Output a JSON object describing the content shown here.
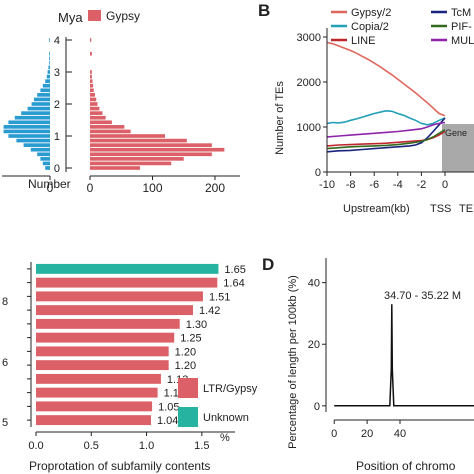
{
  "panel_letters": {
    "b": "B",
    "d": "D"
  },
  "chart_data": [
    {
      "id": "A",
      "type": "bar",
      "orientation": "horizontal",
      "title": "",
      "time_label": "Mya",
      "xlabel": "Number",
      "y_ticks": [
        0,
        1,
        2,
        3,
        4
      ],
      "left_xlim": [
        60,
        0
      ],
      "left_x_ticks": [
        0
      ],
      "right_xlim": [
        0,
        240
      ],
      "right_x_ticks": [
        0,
        100,
        200
      ],
      "legend": {
        "entries": [
          "Gypsy"
        ],
        "position": "top-right"
      },
      "colors": {
        "left": "#2a9bd0",
        "right": "#dc6068"
      },
      "left_values": [
        6,
        9,
        12,
        16,
        24,
        33,
        42,
        52,
        58,
        58,
        52,
        44,
        36,
        28,
        23,
        20,
        16,
        12,
        9,
        6,
        4,
        3,
        2,
        1,
        1,
        1,
        0,
        0,
        1
      ],
      "right_series": {
        "name": "Gypsy",
        "values": [
          80,
          130,
          150,
          195,
          215,
          195,
          155,
          120,
          65,
          55,
          35,
          25,
          20,
          15,
          12,
          10,
          8,
          6,
          5,
          4,
          3,
          3,
          0,
          0,
          0,
          3,
          0,
          0,
          2
        ]
      }
    },
    {
      "id": "B",
      "type": "line",
      "title": "",
      "ylabel": "Number of TEs",
      "xlabel": "Upstream(kb)",
      "x_ticks": [
        "-10",
        "-8",
        "-6",
        "-4",
        "-2",
        "0"
      ],
      "extra_x_labels": [
        "TSS",
        "TE"
      ],
      "ylim": [
        0,
        3200
      ],
      "y_ticks": [
        0,
        1000,
        2000,
        3000
      ],
      "gene_label": "Gene",
      "legend": {
        "position": "top",
        "entries": [
          "Gypsy/2",
          "TcM",
          "Copia/2",
          "PIF-",
          "LINE",
          "MUL"
        ]
      },
      "series": [
        {
          "name": "Gypsy/2",
          "color": "#e0675e",
          "x": [
            -10,
            -9.5,
            -9,
            -8.5,
            -8,
            -7.5,
            -7,
            -6.5,
            -6,
            -5.5,
            -5,
            -4.5,
            -4,
            -3.5,
            -3,
            -2.5,
            -2,
            -1.5,
            -1,
            -0.5,
            0
          ],
          "y": [
            2880,
            2850,
            2800,
            2750,
            2700,
            2640,
            2570,
            2500,
            2420,
            2340,
            2250,
            2160,
            2060,
            1960,
            1860,
            1760,
            1650,
            1540,
            1420,
            1300,
            1250
          ]
        },
        {
          "name": "Copia/2",
          "color": "#22a0b8",
          "x": [
            -10,
            -9.5,
            -9,
            -8.5,
            -8,
            -7.5,
            -7,
            -6.5,
            -6,
            -5.5,
            -5,
            -4.5,
            -4,
            -3.5,
            -3,
            -2.5,
            -2,
            -1.5,
            -1,
            -0.5,
            0
          ],
          "y": [
            1080,
            1100,
            1090,
            1110,
            1150,
            1180,
            1220,
            1260,
            1300,
            1330,
            1360,
            1350,
            1300,
            1260,
            1200,
            1150,
            1080,
            1050,
            1080,
            1150,
            1200
          ]
        },
        {
          "name": "LINE",
          "color": "#c0262d",
          "x": [
            -10,
            -9,
            -8,
            -7,
            -6,
            -5,
            -4,
            -3,
            -2,
            -1.5,
            -1,
            -0.5,
            0
          ],
          "y": [
            580,
            600,
            610,
            620,
            630,
            640,
            660,
            680,
            700,
            720,
            760,
            820,
            900
          ]
        },
        {
          "name": "TcM",
          "color": "#1a237e",
          "x": [
            -10,
            -9,
            -8,
            -7,
            -6,
            -5,
            -4,
            -3,
            -2.5,
            -2,
            -1.5,
            -1,
            -0.5,
            0
          ],
          "y": [
            450,
            470,
            480,
            500,
            520,
            540,
            560,
            580,
            600,
            650,
            760,
            900,
            1050,
            1200
          ]
        },
        {
          "name": "PIF-",
          "color": "#33691e",
          "x": [
            -10,
            -9,
            -8,
            -7,
            -6,
            -5,
            -4,
            -3,
            -2,
            -1.5,
            -1,
            -0.5,
            0
          ],
          "y": [
            520,
            540,
            560,
            570,
            580,
            590,
            610,
            640,
            680,
            720,
            780,
            860,
            940
          ]
        },
        {
          "name": "MUL",
          "color": "#8e24aa",
          "x": [
            -10,
            -9,
            -8,
            -7,
            -6,
            -5,
            -4,
            -3,
            -2,
            -1.5,
            -1,
            -0.5,
            0
          ],
          "y": [
            780,
            800,
            820,
            840,
            860,
            880,
            900,
            930,
            960,
            1000,
            1050,
            1080,
            1100
          ]
        }
      ]
    },
    {
      "id": "C",
      "type": "bar",
      "orientation": "horizontal",
      "title": "",
      "xlabel": "Proprotation of subfamily contents",
      "x_unit": "%",
      "xlim": [
        0,
        1.8
      ],
      "x_ticks": [
        "0.0",
        "0.5",
        "1.0",
        "1.5"
      ],
      "left_edge_labels": [
        "8",
        "6",
        "5"
      ],
      "legend": {
        "position": "bottom-right",
        "entries": [
          {
            "label": "LTR/Gypsy",
            "color": "#dc6068"
          },
          {
            "label": "Unknown",
            "color": "#26b3a0"
          }
        ]
      },
      "values": [
        1.65,
        1.64,
        1.51,
        1.42,
        1.3,
        1.25,
        1.2,
        1.2,
        1.13,
        1.1,
        1.05,
        1.04
      ],
      "value_labels": [
        "1.65",
        "1.64",
        "1.51",
        "1.42",
        "1.30",
        "1.25",
        "1.20",
        "1.20",
        "1.13",
        "1.10",
        "1.05",
        "1.04"
      ],
      "classes": [
        "Unknown",
        "LTR/Gypsy",
        "LTR/Gypsy",
        "LTR/Gypsy",
        "LTR/Gypsy",
        "LTR/Gypsy",
        "LTR/Gypsy",
        "LTR/Gypsy",
        "LTR/Gypsy",
        "LTR/Gypsy",
        "LTR/Gypsy",
        "LTR/Gypsy"
      ]
    },
    {
      "id": "D",
      "type": "line",
      "title": "",
      "ylabel": "Percentage of length per 100kb (%)",
      "xlabel": "Position of chromo",
      "xlim": [
        -5,
        85
      ],
      "x_ticks": [
        0,
        20,
        40
      ],
      "ylim": [
        -2,
        48
      ],
      "y_ticks": [
        0,
        20,
        40
      ],
      "annotation": "34.70 - 35.22 M",
      "peak": {
        "x": 35,
        "y": 33
      },
      "series": [
        {
          "name": "",
          "color": "#111111",
          "x": [
            0,
            33.8,
            34.7,
            35.0,
            35.3,
            36.2,
            85
          ],
          "y": [
            0,
            0,
            12,
            33,
            12,
            0,
            0
          ]
        }
      ]
    }
  ]
}
